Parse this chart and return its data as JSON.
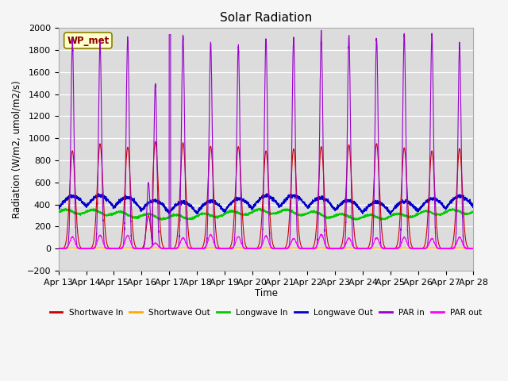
{
  "title": "Solar Radiation",
  "xlabel": "Time",
  "ylabel": "Radiation (W/m2, umol/m2/s)",
  "ylim": [
    -200,
    2000
  ],
  "x_tick_labels": [
    "Apr 13",
    "Apr 14",
    "Apr 15",
    "Apr 16",
    "Apr 17",
    "Apr 18",
    "Apr 19",
    "Apr 20",
    "Apr 21",
    "Apr 22",
    "Apr 23",
    "Apr 24",
    "Apr 25",
    "Apr 26",
    "Apr 27",
    "Apr 28"
  ],
  "legend_label": "WP_met",
  "series": {
    "shortwave_in": {
      "color": "#cc0000",
      "label": "Shortwave In"
    },
    "shortwave_out": {
      "color": "#ffaa00",
      "label": "Shortwave Out"
    },
    "longwave_in": {
      "color": "#00cc00",
      "label": "Longwave In"
    },
    "longwave_out": {
      "color": "#0000cc",
      "label": "Longwave Out"
    },
    "par_in": {
      "color": "#9900cc",
      "label": "PAR in"
    },
    "par_out": {
      "color": "#ff00ff",
      "label": "PAR out"
    }
  },
  "plot_bg_color": "#dcdcdc",
  "grid_color": "#ffffff",
  "fig_bg_color": "#f5f5f5",
  "n_days": 15,
  "points_per_day": 288
}
